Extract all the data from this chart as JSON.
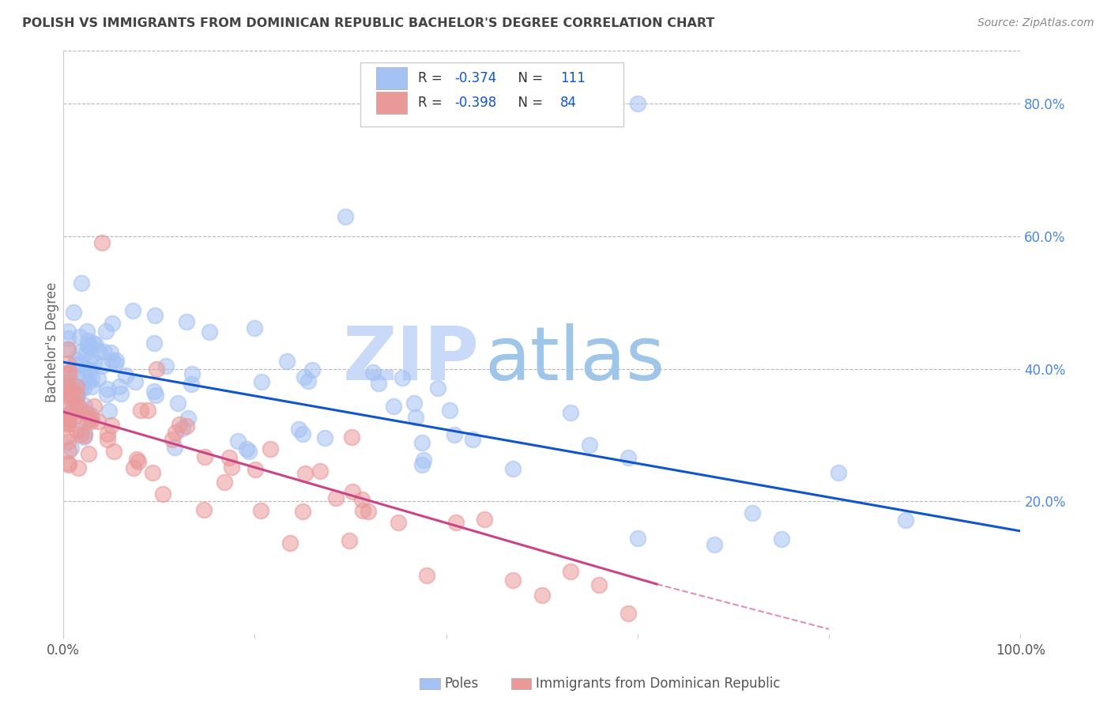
{
  "title": "POLISH VS IMMIGRANTS FROM DOMINICAN REPUBLIC BACHELOR'S DEGREE CORRELATION CHART",
  "source": "Source: ZipAtlas.com",
  "ylabel": "Bachelor's Degree",
  "legend_blue_r": "-0.374",
  "legend_blue_n": "111",
  "legend_pink_r": "-0.398",
  "legend_pink_n": "84",
  "blue_color": "#a4c2f4",
  "pink_color": "#ea9999",
  "line_blue_color": "#1155cc",
  "line_pink_color": "#cc4488",
  "watermark_zip_color": "#c9daf8",
  "watermark_atlas_color": "#9fc5e8",
  "background_color": "#ffffff",
  "grid_color": "#b7b7b7",
  "title_color": "#434343",
  "right_tick_color": "#4a86e8",
  "legend_text_color": "#333333",
  "legend_value_color": "#1155cc"
}
